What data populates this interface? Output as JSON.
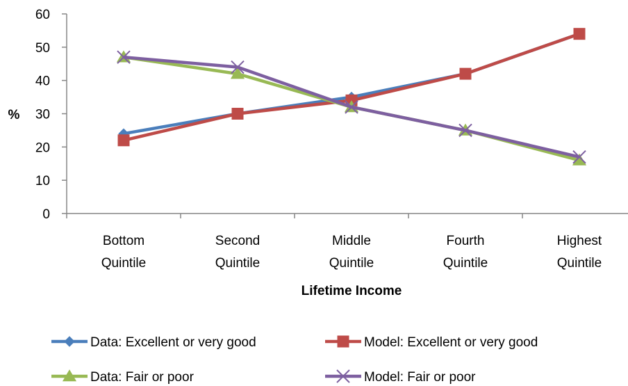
{
  "chart_data": {
    "type": "line",
    "title": "",
    "xlabel": "Lifetime Income",
    "ylabel": "%",
    "ylim": [
      0,
      60
    ],
    "yticks": [
      0,
      10,
      20,
      30,
      40,
      50,
      60
    ],
    "categories": [
      [
        "Bottom",
        "Quintile"
      ],
      [
        "Second",
        "Quintile"
      ],
      [
        "Middle",
        "Quintile"
      ],
      [
        "Fourth",
        "Quintile"
      ],
      [
        "Highest",
        "Quintile"
      ]
    ],
    "grid": false,
    "legend_position": "bottom",
    "series": [
      {
        "name": "Data: Excellent or very good",
        "values": [
          24,
          30,
          35,
          42,
          54
        ],
        "color": "#4a7ebb",
        "marker": "diamond"
      },
      {
        "name": "Model: Excellent or very good",
        "values": [
          22,
          30,
          34,
          42,
          54
        ],
        "color": "#be4b48",
        "marker": "square"
      },
      {
        "name": "Data: Fair or poor",
        "values": [
          47,
          42,
          32,
          25,
          16
        ],
        "color": "#98b954",
        "marker": "triangle"
      },
      {
        "name": "Model: Fair or poor",
        "values": [
          47,
          44,
          32,
          25,
          17
        ],
        "color": "#7d5fa0",
        "marker": "x"
      }
    ]
  }
}
